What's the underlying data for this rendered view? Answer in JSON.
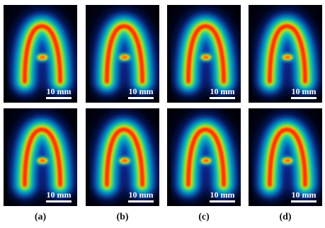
{
  "figure": {
    "scale_bar_text": "10 mm",
    "column_labels": [
      "(a)",
      "(b)",
      "(c)",
      "(d)"
    ],
    "rows": 2,
    "image_description_colors": {
      "background": "#000010",
      "outer_glow": "#0020a0",
      "mid": "#00c0c0",
      "green": "#40e040",
      "yellow": "#ffe000",
      "core": "#ff2000"
    }
  }
}
